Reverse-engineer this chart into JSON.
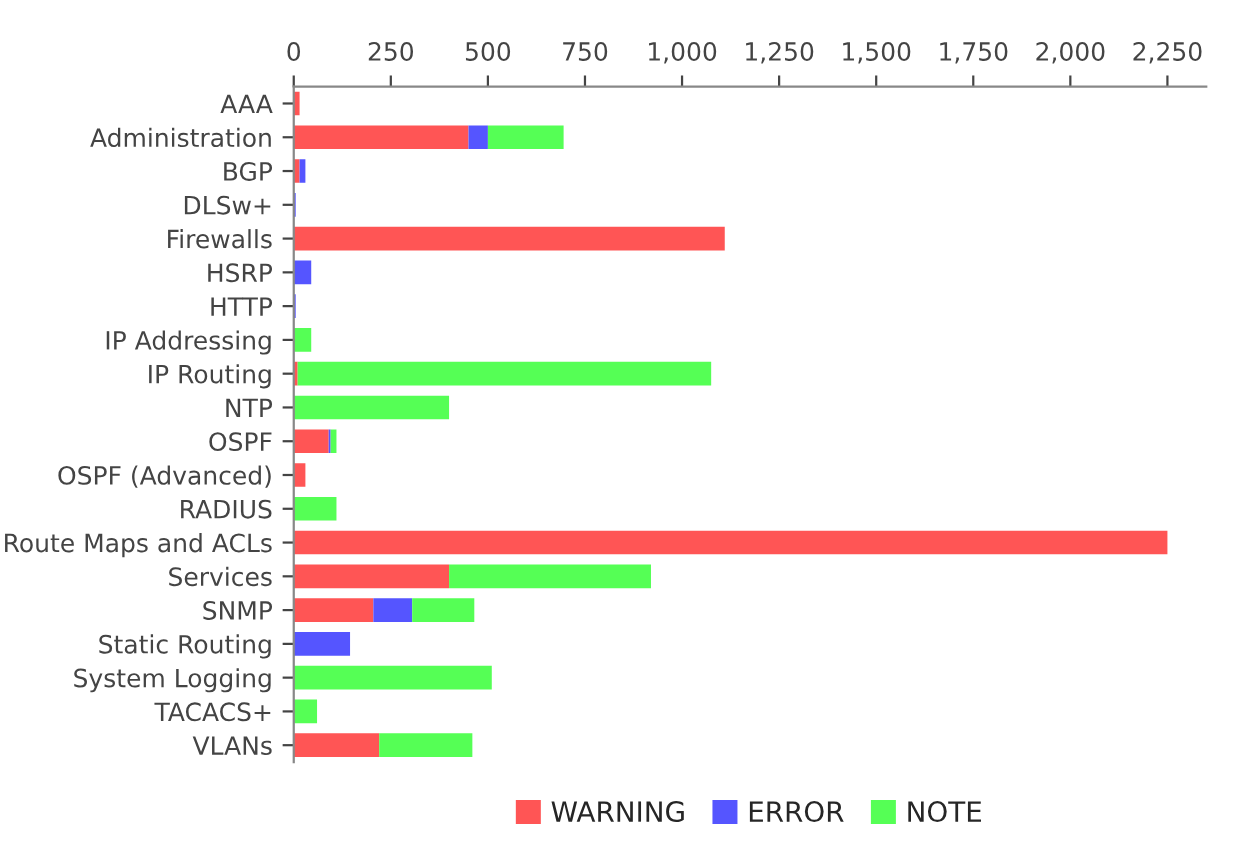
{
  "chart_data": {
    "type": "bar",
    "orientation": "horizontal",
    "stacked": true,
    "categories": [
      "AAA",
      "Administration",
      "BGP",
      "DLSw+",
      "Firewalls",
      "HSRP",
      "HTTP",
      "IP Addressing",
      "IP Routing",
      "NTP",
      "OSPF",
      "OSPF (Advanced)",
      "RADIUS",
      "Route Maps and ACLs",
      "Services",
      "SNMP",
      "Static Routing",
      "System Logging",
      "TACACS+",
      "VLANs"
    ],
    "series": [
      {
        "name": "WARNING",
        "color": "#ff5555",
        "values": [
          15,
          450,
          15,
          null,
          1110,
          null,
          null,
          null,
          10,
          null,
          90,
          30,
          null,
          2250,
          400,
          205,
          null,
          null,
          null,
          220
        ]
      },
      {
        "name": "ERROR",
        "color": "#5555ff",
        "values": [
          null,
          50,
          15,
          5,
          null,
          45,
          5,
          null,
          null,
          null,
          5,
          null,
          null,
          null,
          null,
          100,
          145,
          null,
          null,
          null
        ]
      },
      {
        "name": "NOTE",
        "color": "#55ff55",
        "values": [
          null,
          195,
          null,
          null,
          null,
          null,
          null,
          45,
          1065,
          400,
          15,
          null,
          110,
          null,
          520,
          160,
          null,
          510,
          60,
          240
        ]
      }
    ],
    "xlim": [
      0,
      2350
    ],
    "xticks": [
      0,
      250,
      500,
      750,
      {
        "value": 1000,
        "label": "1,000"
      },
      {
        "value": 1250,
        "label": "1,250"
      },
      {
        "value": 1500,
        "label": "1,500"
      },
      {
        "value": 1750,
        "label": "1,750"
      },
      {
        "value": 2000,
        "label": "2,000"
      },
      {
        "value": 2250,
        "label": "2,250"
      }
    ],
    "grid": false,
    "legend": "bottom"
  }
}
